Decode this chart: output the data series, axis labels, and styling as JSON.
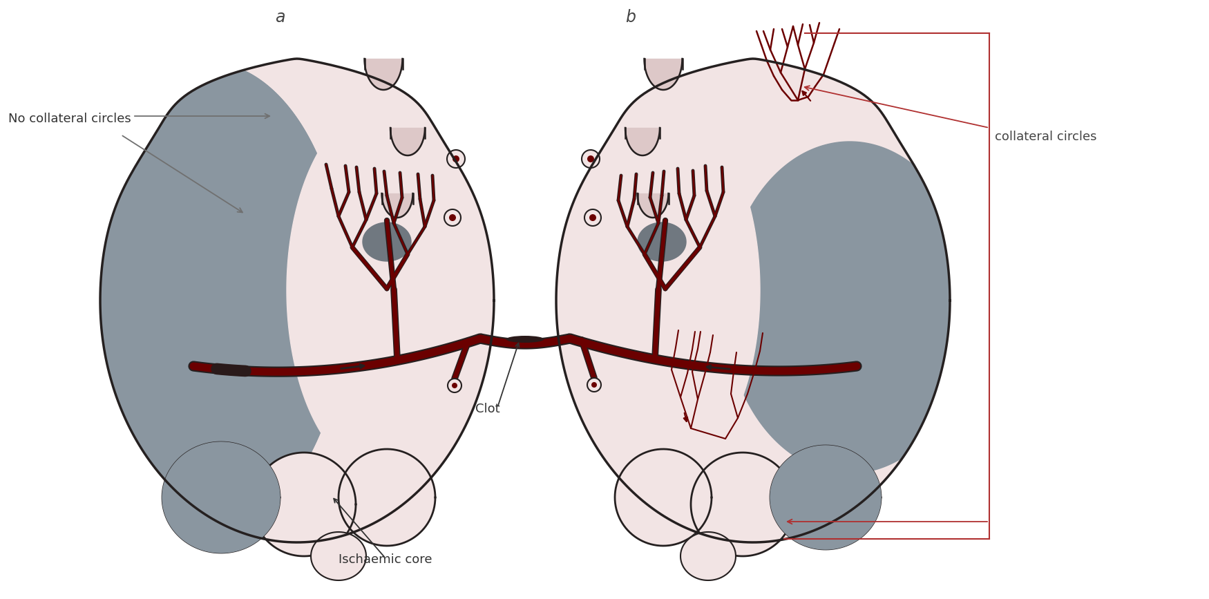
{
  "bg_color": "#ffffff",
  "label_a": "a",
  "label_b": "b",
  "label_no_collateral": "No collateral circles",
  "label_collateral": "collateral circles",
  "label_clot": "Clot",
  "label_ischaemic": "Ischaemic core",
  "brain_pink_light": "#f2e4e4",
  "brain_pink_mid": "#e8d0d0",
  "brain_pink_inner": "#eedcdc",
  "brain_gray": "#8a96a0",
  "brain_gray_dark": "#707880",
  "brain_gyri_fill": "#ddc8c8",
  "dark_outline": "#252020",
  "vessel_dark": "#6b0000",
  "vessel_red": "#cc1111",
  "arrow_gray": "#707070",
  "box_red": "#b03030",
  "clot_color": "#2a1a1a"
}
